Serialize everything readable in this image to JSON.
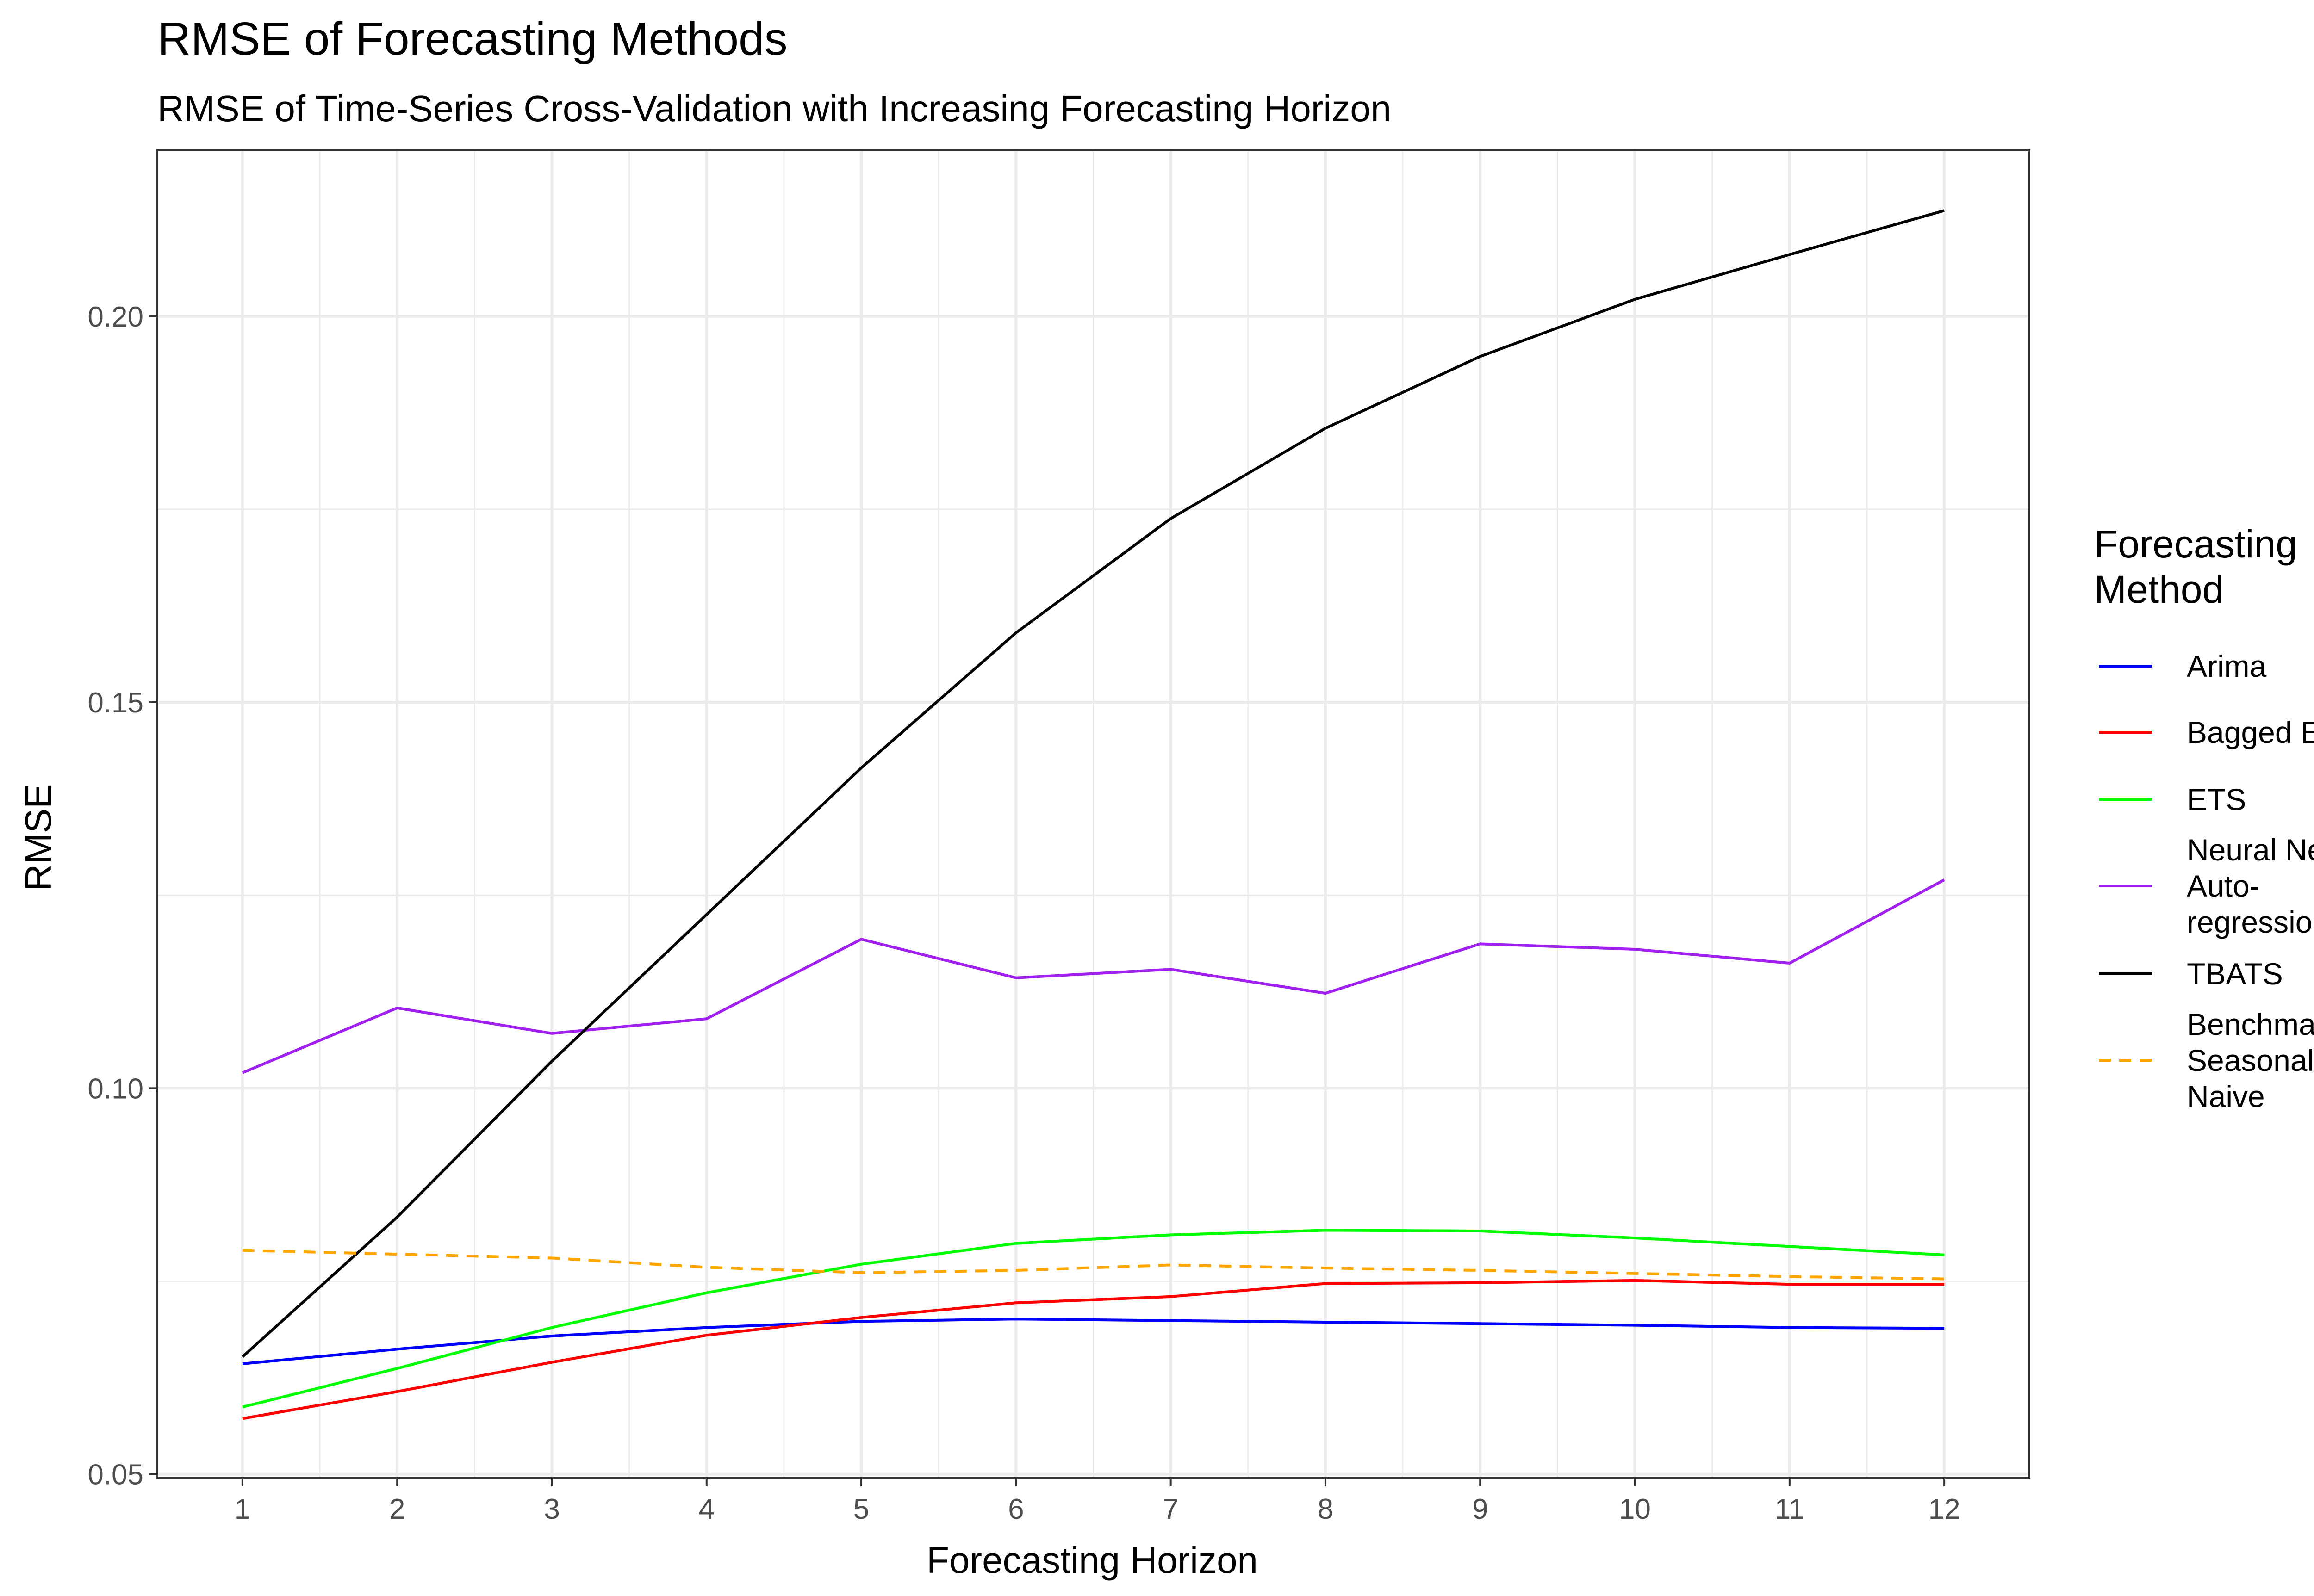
{
  "chart_data": {
    "type": "line",
    "title": "RMSE of Forecasting Methods",
    "subtitle": "RMSE of Time-Series Cross-Validation with Increasing Forecasting Horizon",
    "xlabel": "Forecasting Horizon",
    "ylabel": "RMSE",
    "x": [
      1,
      2,
      3,
      4,
      5,
      6,
      7,
      8,
      9,
      10,
      11,
      12
    ],
    "xlim": [
      0.45,
      12.55
    ],
    "ylim": [
      0.0495,
      0.2215
    ],
    "yticks": [
      0.05,
      0.1,
      0.15,
      0.2
    ],
    "ytick_labels": [
      "0.05",
      "0.10",
      "0.15",
      "0.20"
    ],
    "xtick_labels": [
      "1",
      "2",
      "3",
      "4",
      "5",
      "6",
      "7",
      "8",
      "9",
      "10",
      "11",
      "12"
    ],
    "grid": true,
    "legend": {
      "title": [
        "Forecasting",
        "Method"
      ],
      "placement": "right"
    },
    "series": [
      {
        "name": "Arima",
        "label_lines": [
          "Arima"
        ],
        "color": "#0000ff",
        "dashed": false,
        "values": [
          0.0643,
          0.0662,
          0.0679,
          0.069,
          0.0698,
          0.0701,
          0.0699,
          0.0697,
          0.0695,
          0.0693,
          0.069,
          0.0689
        ]
      },
      {
        "name": "Bagged ETS",
        "label_lines": [
          "Bagged ETS"
        ],
        "color": "#ff0000",
        "dashed": false,
        "values": [
          0.0572,
          0.0607,
          0.0645,
          0.068,
          0.0703,
          0.0722,
          0.073,
          0.0747,
          0.0748,
          0.0751,
          0.0746,
          0.0746
        ]
      },
      {
        "name": "ETS",
        "label_lines": [
          "ETS"
        ],
        "color": "#00ff00",
        "dashed": false,
        "values": [
          0.0587,
          0.0637,
          0.069,
          0.0735,
          0.0772,
          0.0799,
          0.081,
          0.0816,
          0.0815,
          0.0806,
          0.0795,
          0.0784
        ]
      },
      {
        "name": "Neural Net Auto-regression",
        "label_lines": [
          "Neural Net",
          "Auto-",
          "regression"
        ],
        "color": "#a020f0",
        "dashed": false,
        "values": [
          0.102,
          0.1104,
          0.1071,
          0.109,
          0.1193,
          0.1143,
          0.1154,
          0.1123,
          0.1187,
          0.118,
          0.1162,
          0.127
        ]
      },
      {
        "name": "TBATS",
        "label_lines": [
          "TBATS"
        ],
        "color": "#000000",
        "dashed": false,
        "values": [
          0.0652,
          0.0833,
          0.1035,
          0.1225,
          0.1415,
          0.159,
          0.1738,
          0.1855,
          0.1948,
          0.2022,
          0.208,
          0.2137
        ]
      },
      {
        "name": "Benchmark Seasonal Naive",
        "label_lines": [
          "Benchmark",
          "Seasonal",
          "Naive"
        ],
        "color": "#ffa500",
        "dashed": true,
        "values": [
          0.079,
          0.0785,
          0.078,
          0.0768,
          0.0761,
          0.0764,
          0.0771,
          0.0767,
          0.0764,
          0.076,
          0.0756,
          0.0753
        ]
      }
    ]
  }
}
